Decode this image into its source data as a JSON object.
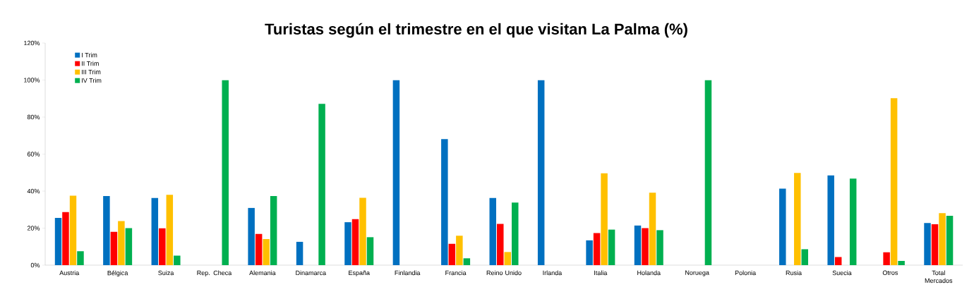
{
  "chart_data": {
    "type": "bar",
    "title": "Turistas según el trimestre en el que visitan La Palma (%)",
    "categories": [
      "Austria",
      "Bélgica",
      "Suiza",
      "Rep. Checa",
      "Alemania",
      "Dinamarca",
      "España",
      "Finlandia",
      "Francia",
      "Reino Unido",
      "Irlanda",
      "Italia",
      "Holanda",
      "Noruega",
      "Polonia",
      "Rusia",
      "Suecia",
      "Otros",
      "Total Mercados"
    ],
    "series": [
      {
        "name": "I Trim",
        "color": "#0070c0",
        "values": [
          25.5,
          37.3,
          36.3,
          0,
          30.9,
          12.6,
          23.2,
          100,
          68.1,
          36.3,
          100,
          13.4,
          21.4,
          0,
          0,
          41.3,
          48.5,
          0,
          22.8
        ]
      },
      {
        "name": "II Trim",
        "color": "#ff0000",
        "values": [
          28.7,
          18,
          19.9,
          0,
          16.9,
          0,
          24.9,
          0,
          11.5,
          22.3,
          0,
          17.3,
          20,
          0,
          0,
          0,
          4.4,
          7,
          22.1
        ]
      },
      {
        "name": "III Trim",
        "color": "#ffc000",
        "values": [
          37.5,
          23.8,
          38,
          0,
          14.1,
          0,
          36.4,
          0,
          15.9,
          7.1,
          0,
          49.6,
          39.1,
          0,
          0,
          49.8,
          0,
          90.2,
          28.1
        ]
      },
      {
        "name": "IV Trim",
        "color": "#00b050",
        "values": [
          7.5,
          20,
          5.1,
          100,
          37.3,
          87.1,
          15.1,
          0,
          3.7,
          33.8,
          0,
          19.2,
          18.9,
          100,
          0,
          8.6,
          46.8,
          2.3,
          26.7
        ]
      }
    ],
    "ylim": [
      0,
      120
    ],
    "yticks": [
      {
        "value": 0,
        "label": "0%"
      },
      {
        "value": 20,
        "label": "20%"
      },
      {
        "value": 40,
        "label": "40%"
      },
      {
        "value": 60,
        "label": "60%"
      },
      {
        "value": 80,
        "label": "80%"
      },
      {
        "value": 100,
        "label": "100%"
      },
      {
        "value": 120,
        "label": "120%"
      }
    ],
    "grid": false,
    "legend": "top left"
  }
}
